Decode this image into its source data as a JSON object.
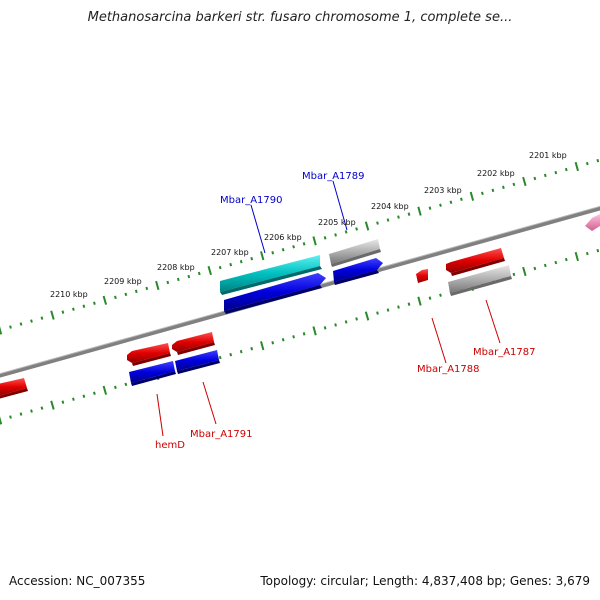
{
  "title": "Methanosarcina barkeri str. fusaro chromosome 1, complete se...",
  "footer": {
    "accession": "Accession: NC_007355",
    "summary": "Topology: circular; Length: 4,837,408 bp; Genes: 3,679"
  },
  "ruler": {
    "ticks": [
      "2201 kbp",
      "2202 kbp",
      "2203 kbp",
      "2204 kbp",
      "2205 kbp",
      "2206 kbp",
      "2207 kbp",
      "2208 kbp",
      "2209 kbp",
      "2210 kbp"
    ],
    "color": "#2a8a2a"
  },
  "backbone_color": "#808080",
  "genes": [
    {
      "name": "Mbar_A1790",
      "color": "#0000cc"
    },
    {
      "name": "Mbar_A1789",
      "color": "#0000cc"
    },
    {
      "name": "Mbar_A1788",
      "color": "#cc0000"
    },
    {
      "name": "Mbar_A1787",
      "color": "#cc0000"
    },
    {
      "name": "hemD",
      "color": "#cc0000"
    },
    {
      "name": "Mbar_A1791",
      "color": "#cc0000"
    }
  ],
  "feature_colors": {
    "red": "#e00000",
    "blue": "#0000dd",
    "cyan": "#00c0c0",
    "gray": "#b0b0b0",
    "pink": "#f090c0"
  }
}
